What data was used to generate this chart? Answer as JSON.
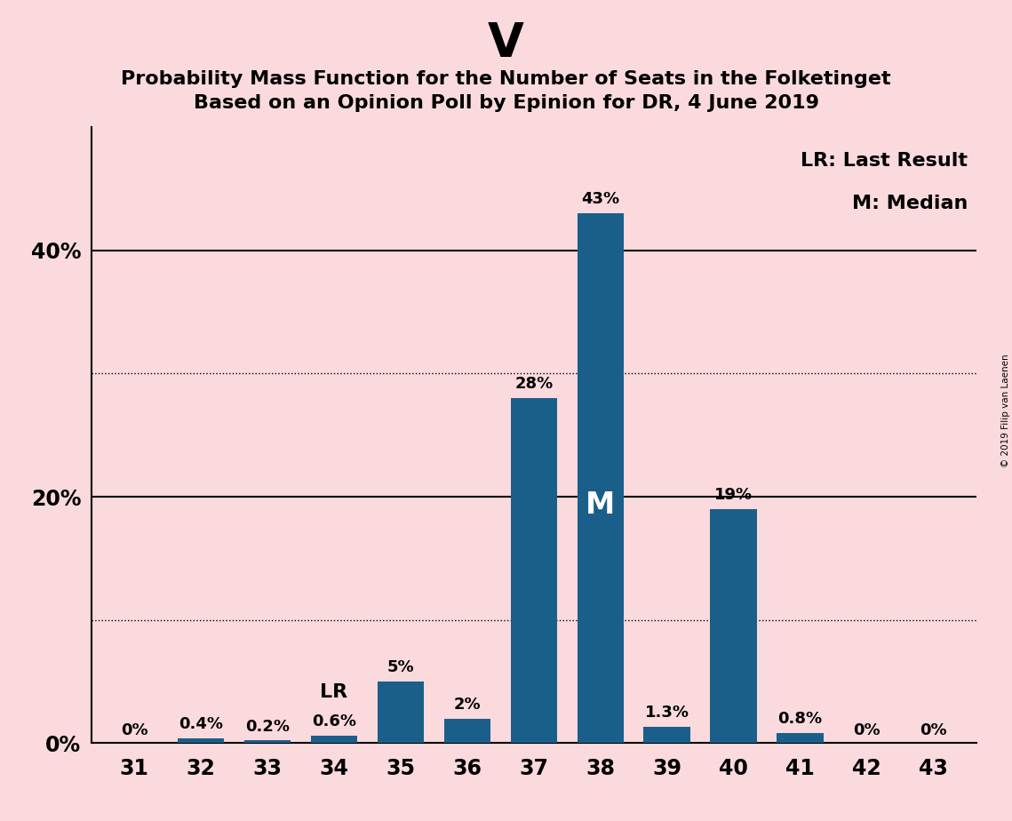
{
  "title_main": "V",
  "title_sub1": "Probability Mass Function for the Number of Seats in the Folketinget",
  "title_sub2": "Based on an Opinion Poll by Epinion for DR, 4 June 2019",
  "categories": [
    31,
    32,
    33,
    34,
    35,
    36,
    37,
    38,
    39,
    40,
    41,
    42,
    43
  ],
  "values": [
    0.0,
    0.4,
    0.2,
    0.6,
    5.0,
    2.0,
    28.0,
    43.0,
    1.3,
    19.0,
    0.8,
    0.0,
    0.0
  ],
  "labels": [
    "0%",
    "0.4%",
    "0.2%",
    "0.6%",
    "5%",
    "2%",
    "28%",
    "43%",
    "1.3%",
    "19%",
    "0.8%",
    "0%",
    "0%"
  ],
  "bar_color": "#1a5f8a",
  "background_color": "#fadadd",
  "ylim": [
    0,
    50
  ],
  "solid_yticks": [
    20,
    40
  ],
  "dotted_yticks": [
    10,
    30
  ],
  "shown_ytick_values": [
    0,
    20,
    40
  ],
  "shown_ytick_labels": [
    "0%",
    "20%",
    "40%"
  ],
  "lr_seat": 34,
  "median_seat": 38,
  "lr_label": "LR",
  "median_label": "M",
  "legend_text1": "LR: Last Result",
  "legend_text2": "M: Median",
  "copyright_text": "© 2019 Filip van Laenen",
  "title_main_fontsize": 38,
  "title_sub_fontsize": 16,
  "bar_label_fontsize": 13,
  "axis_label_fontsize": 17,
  "legend_fontsize": 16
}
